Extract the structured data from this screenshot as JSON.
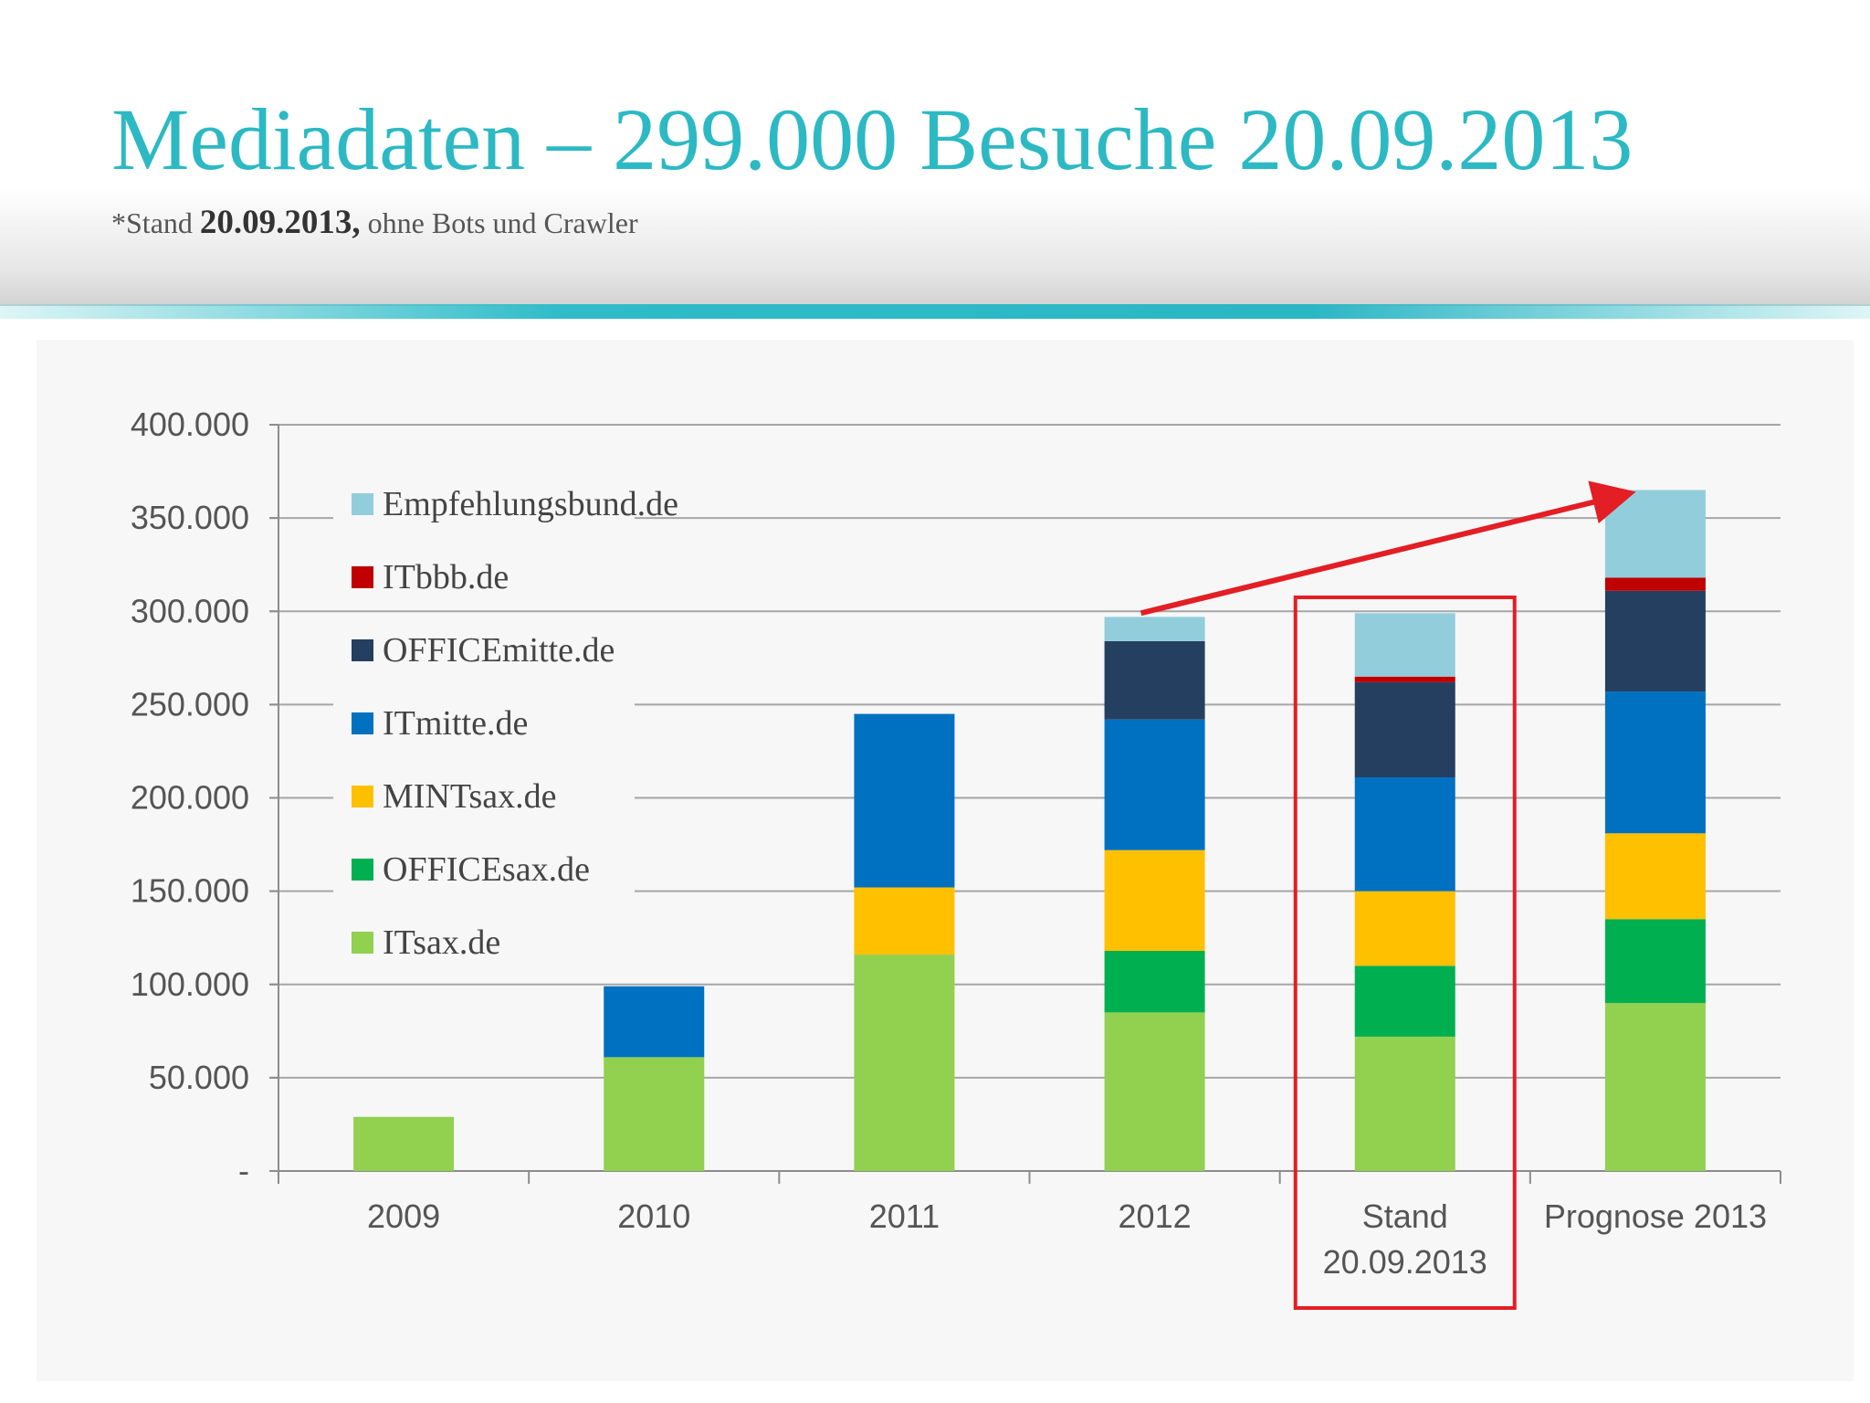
{
  "slide": {
    "title": "Mediadaten – 299.000 Besuche 20.09.2013",
    "subtitle_prefix": "*Stand ",
    "subtitle_date": "20.09.2013,",
    "subtitle_suffix": " ohne Bots und Crawler"
  },
  "chart_data": {
    "type": "bar",
    "stacked": true,
    "categories": [
      "2009",
      "2010",
      "2011",
      "2012",
      "Stand 20.09.2013",
      "Prognose 2013"
    ],
    "category_lines": [
      [
        "2009"
      ],
      [
        "2010"
      ],
      [
        "2011"
      ],
      [
        "2012"
      ],
      [
        "Stand",
        "20.09.2013"
      ],
      [
        "Prognose 2013"
      ]
    ],
    "ylim": [
      0,
      400000
    ],
    "yticks": [
      0,
      50000,
      100000,
      150000,
      200000,
      250000,
      300000,
      350000,
      400000
    ],
    "ytick_labels": [
      "-",
      "50.000",
      "100.000",
      "150.000",
      "200.000",
      "250.000",
      "300.000",
      "350.000",
      "400.000"
    ],
    "grid": true,
    "legend_position": "top-left",
    "highlight_category": "Stand 20.09.2013",
    "highlight_color": "#e31e24",
    "trend_arrow": {
      "from_category": "2012",
      "to_category": "Prognose 2013",
      "from_value": 300000,
      "to_value": 365000,
      "color": "#e31e24"
    },
    "series": [
      {
        "name": "ITsax.de",
        "color": "#92d050",
        "values": [
          29000,
          61000,
          116000,
          85000,
          72000,
          90000
        ]
      },
      {
        "name": "OFFICEsax.de",
        "color": "#00b050",
        "values": [
          0,
          0,
          0,
          33000,
          38000,
          45000
        ]
      },
      {
        "name": "MINTsax.de",
        "color": "#ffc000",
        "values": [
          0,
          0,
          36000,
          54000,
          40000,
          46000
        ]
      },
      {
        "name": "ITmitte.de",
        "color": "#0070c0",
        "values": [
          0,
          38000,
          93000,
          70000,
          61000,
          76000
        ]
      },
      {
        "name": "OFFICEmitte.de",
        "color": "#243f60",
        "values": [
          0,
          0,
          0,
          42000,
          51000,
          54000
        ]
      },
      {
        "name": "ITbbb.de",
        "color": "#c00000",
        "values": [
          0,
          0,
          0,
          0,
          3000,
          7000
        ]
      },
      {
        "name": "Empfehlungsbund.de",
        "color": "#92cddc",
        "values": [
          0,
          0,
          0,
          13000,
          34000,
          47000
        ]
      }
    ]
  }
}
